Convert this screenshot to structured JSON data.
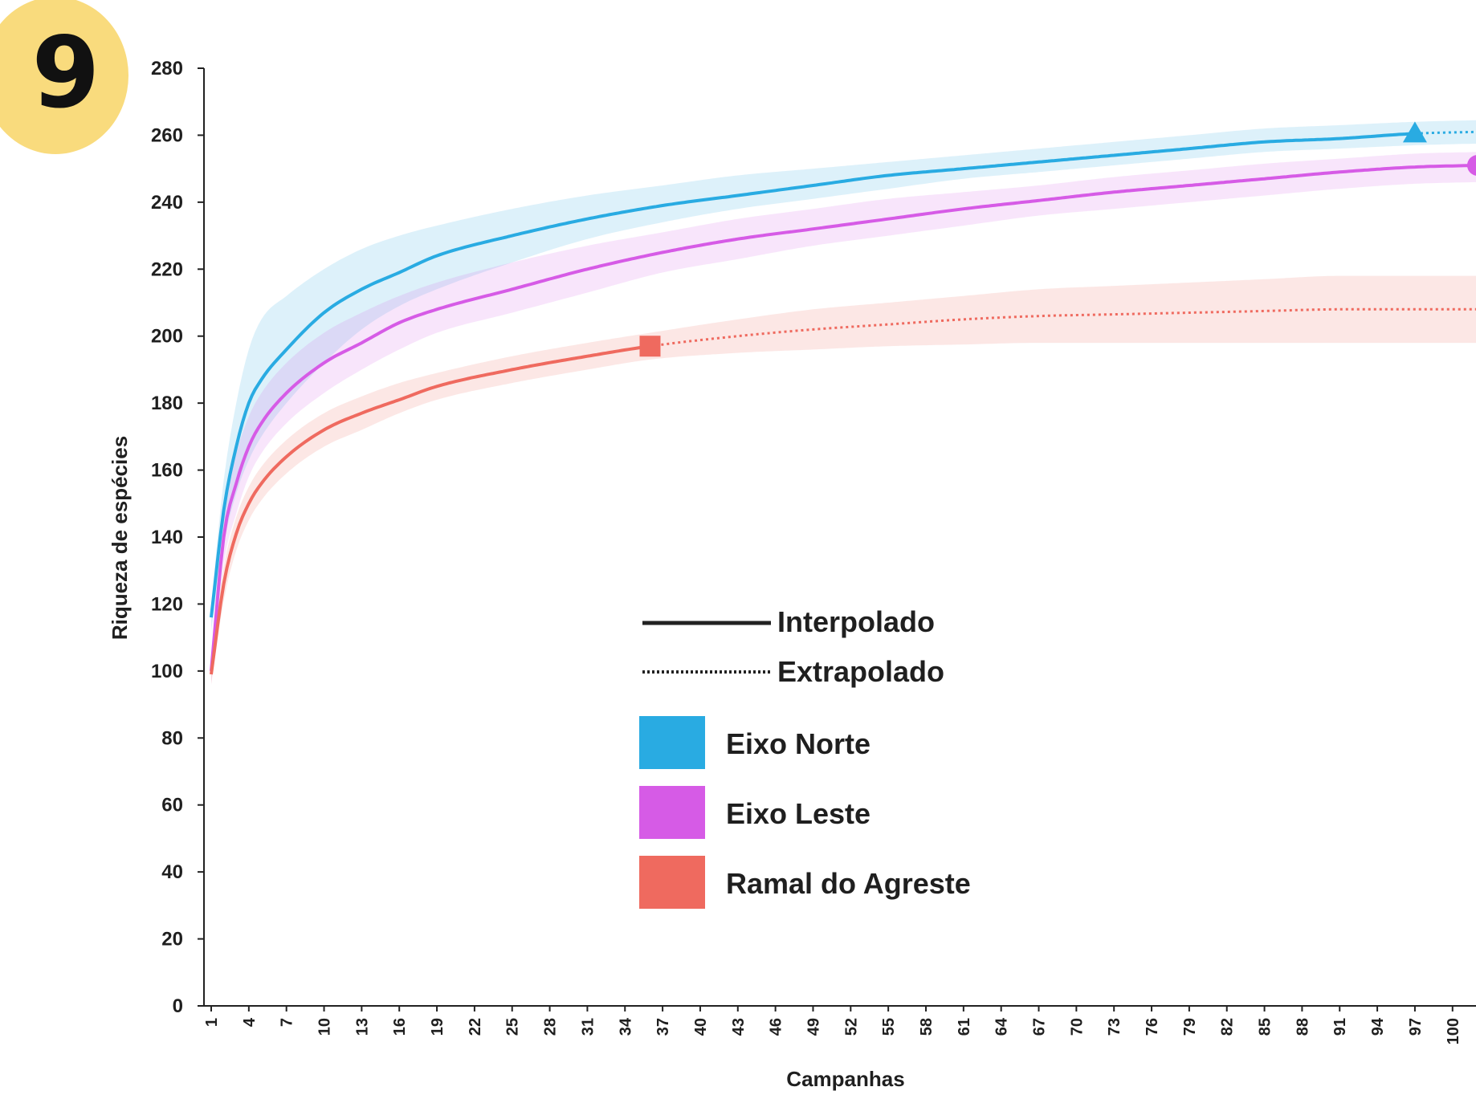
{
  "badge": {
    "number": "9",
    "color": "#f9db7d"
  },
  "chart_data": {
    "type": "line",
    "title": "",
    "xlabel": "Campanhas",
    "ylabel": "Riqueza de espécies",
    "xlim": [
      1,
      102
    ],
    "ylim": [
      0,
      280
    ],
    "yticks": [
      0,
      20,
      40,
      60,
      80,
      100,
      120,
      140,
      160,
      180,
      200,
      220,
      240,
      260,
      280
    ],
    "xticks": [
      1,
      4,
      7,
      10,
      13,
      16,
      19,
      22,
      25,
      28,
      31,
      34,
      37,
      40,
      43,
      46,
      49,
      52,
      55,
      58,
      61,
      64,
      67,
      70,
      73,
      76,
      79,
      82,
      85,
      88,
      91,
      94,
      97,
      100
    ],
    "grid": false,
    "legend_position": "center",
    "line_types": [
      "Interpolado",
      "Extrapolado"
    ],
    "series": [
      {
        "name": "Eixo Norte",
        "color": "#29abe2",
        "marker": "triangle",
        "observed_x": 97,
        "x": [
          1,
          2,
          3,
          4,
          5,
          7,
          10,
          13,
          16,
          19,
          25,
          31,
          37,
          43,
          49,
          55,
          61,
          67,
          73,
          79,
          85,
          91,
          97,
          102
        ],
        "y": [
          116,
          148,
          167,
          180,
          187,
          196,
          207,
          214,
          219,
          224,
          230,
          235,
          239,
          242,
          245,
          248,
          250,
          252,
          254,
          256,
          258,
          259,
          260.5,
          261
        ],
        "lower": [
          112,
          138,
          153,
          163,
          170,
          180,
          192,
          202,
          209,
          214,
          222,
          229,
          234,
          238,
          241,
          244,
          247,
          249,
          251,
          253,
          255,
          256,
          257,
          257.5
        ],
        "upper": [
          120,
          157,
          180,
          196,
          205,
          212,
          220,
          226,
          230,
          233,
          238,
          242,
          245,
          248,
          250,
          252,
          254,
          256,
          258,
          260,
          262,
          263,
          264,
          264.5
        ]
      },
      {
        "name": "Eixo Leste",
        "color": "#d65be6",
        "marker": "circle",
        "observed_x": 102,
        "x": [
          1,
          2,
          3,
          4,
          5,
          7,
          10,
          13,
          16,
          19,
          25,
          31,
          37,
          43,
          49,
          55,
          61,
          67,
          73,
          79,
          85,
          91,
          97,
          102
        ],
        "y": [
          100,
          140,
          156,
          167,
          174,
          183,
          192,
          198,
          204,
          208,
          214,
          220,
          225,
          229,
          232,
          235,
          238,
          240.5,
          243,
          245,
          247,
          249,
          250.5,
          251
        ],
        "lower": [
          96,
          132,
          147,
          158,
          165,
          174,
          183,
          190,
          196,
          201,
          207,
          213,
          219,
          223,
          227,
          230,
          233,
          236,
          238,
          240,
          242,
          244,
          245.5,
          246
        ],
        "upper": [
          104,
          148,
          165,
          176,
          183,
          192,
          201,
          207,
          212,
          216,
          222,
          227,
          231,
          235,
          238,
          241,
          243,
          245,
          247.5,
          249.5,
          251.5,
          253,
          254.5,
          255
        ]
      },
      {
        "name": "Ramal do Agreste",
        "color": "#ef6a5f",
        "marker": "square",
        "observed_x": 36,
        "x": [
          1,
          2,
          3,
          4,
          5,
          7,
          10,
          13,
          16,
          19,
          25,
          31,
          36,
          43,
          49,
          55,
          61,
          67,
          73,
          79,
          85,
          91,
          97,
          102
        ],
        "y": [
          99,
          126,
          141,
          150,
          156,
          164,
          172,
          177,
          181,
          185,
          190,
          194,
          197,
          200,
          202,
          203.5,
          205,
          206,
          206.5,
          207,
          207.5,
          208,
          208,
          208
        ],
        "lower": [
          96,
          121,
          136,
          145,
          151,
          159,
          167,
          172,
          177,
          181,
          186,
          190,
          193,
          195,
          196,
          197,
          197.5,
          198,
          198,
          198,
          198,
          198,
          198,
          198
        ],
        "upper": [
          102,
          131,
          146,
          155,
          161,
          169,
          177,
          182,
          186,
          189,
          194,
          198,
          201,
          205,
          208,
          210,
          212,
          214,
          215,
          216,
          217,
          218,
          218,
          218
        ]
      }
    ]
  }
}
